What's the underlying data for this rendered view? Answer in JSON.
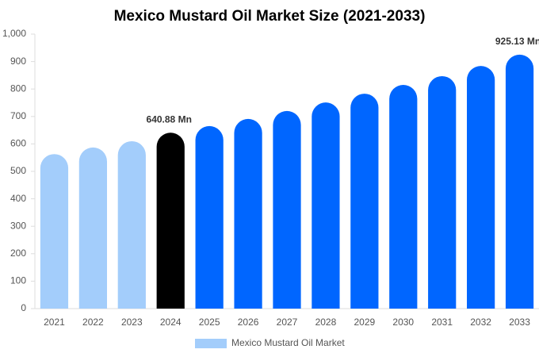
{
  "chart_data": {
    "type": "bar",
    "title": "Mexico Mustard Oil Market Size (2021-2033)",
    "categories": [
      "2021",
      "2022",
      "2023",
      "2024",
      "2025",
      "2026",
      "2027",
      "2028",
      "2029",
      "2030",
      "2031",
      "2032",
      "2033"
    ],
    "series": [
      {
        "name": "Mexico Mustard Oil Market",
        "color": "#a3cdfb",
        "colors": [
          "#a3cdfb",
          "#a3cdfb",
          "#a3cdfb",
          "#000000",
          "#0066ff",
          "#0066ff",
          "#0066ff",
          "#0066ff",
          "#0066ff",
          "#0066ff",
          "#0066ff",
          "#0066ff",
          "#0066ff"
        ],
        "values": [
          563,
          587,
          610,
          640.88,
          665,
          691,
          720,
          751,
          783,
          815,
          847,
          884,
          925.13
        ],
        "value_labels": [
          null,
          null,
          null,
          "640.88 Mn",
          null,
          null,
          null,
          null,
          null,
          null,
          null,
          null,
          "925.13 Mn"
        ]
      }
    ],
    "ylim": [
      0,
      1000
    ],
    "yticks": [
      0,
      100,
      200,
      300,
      400,
      500,
      600,
      700,
      800,
      900,
      {
        "value": 1000,
        "label": "1,000"
      }
    ],
    "grid": false
  }
}
